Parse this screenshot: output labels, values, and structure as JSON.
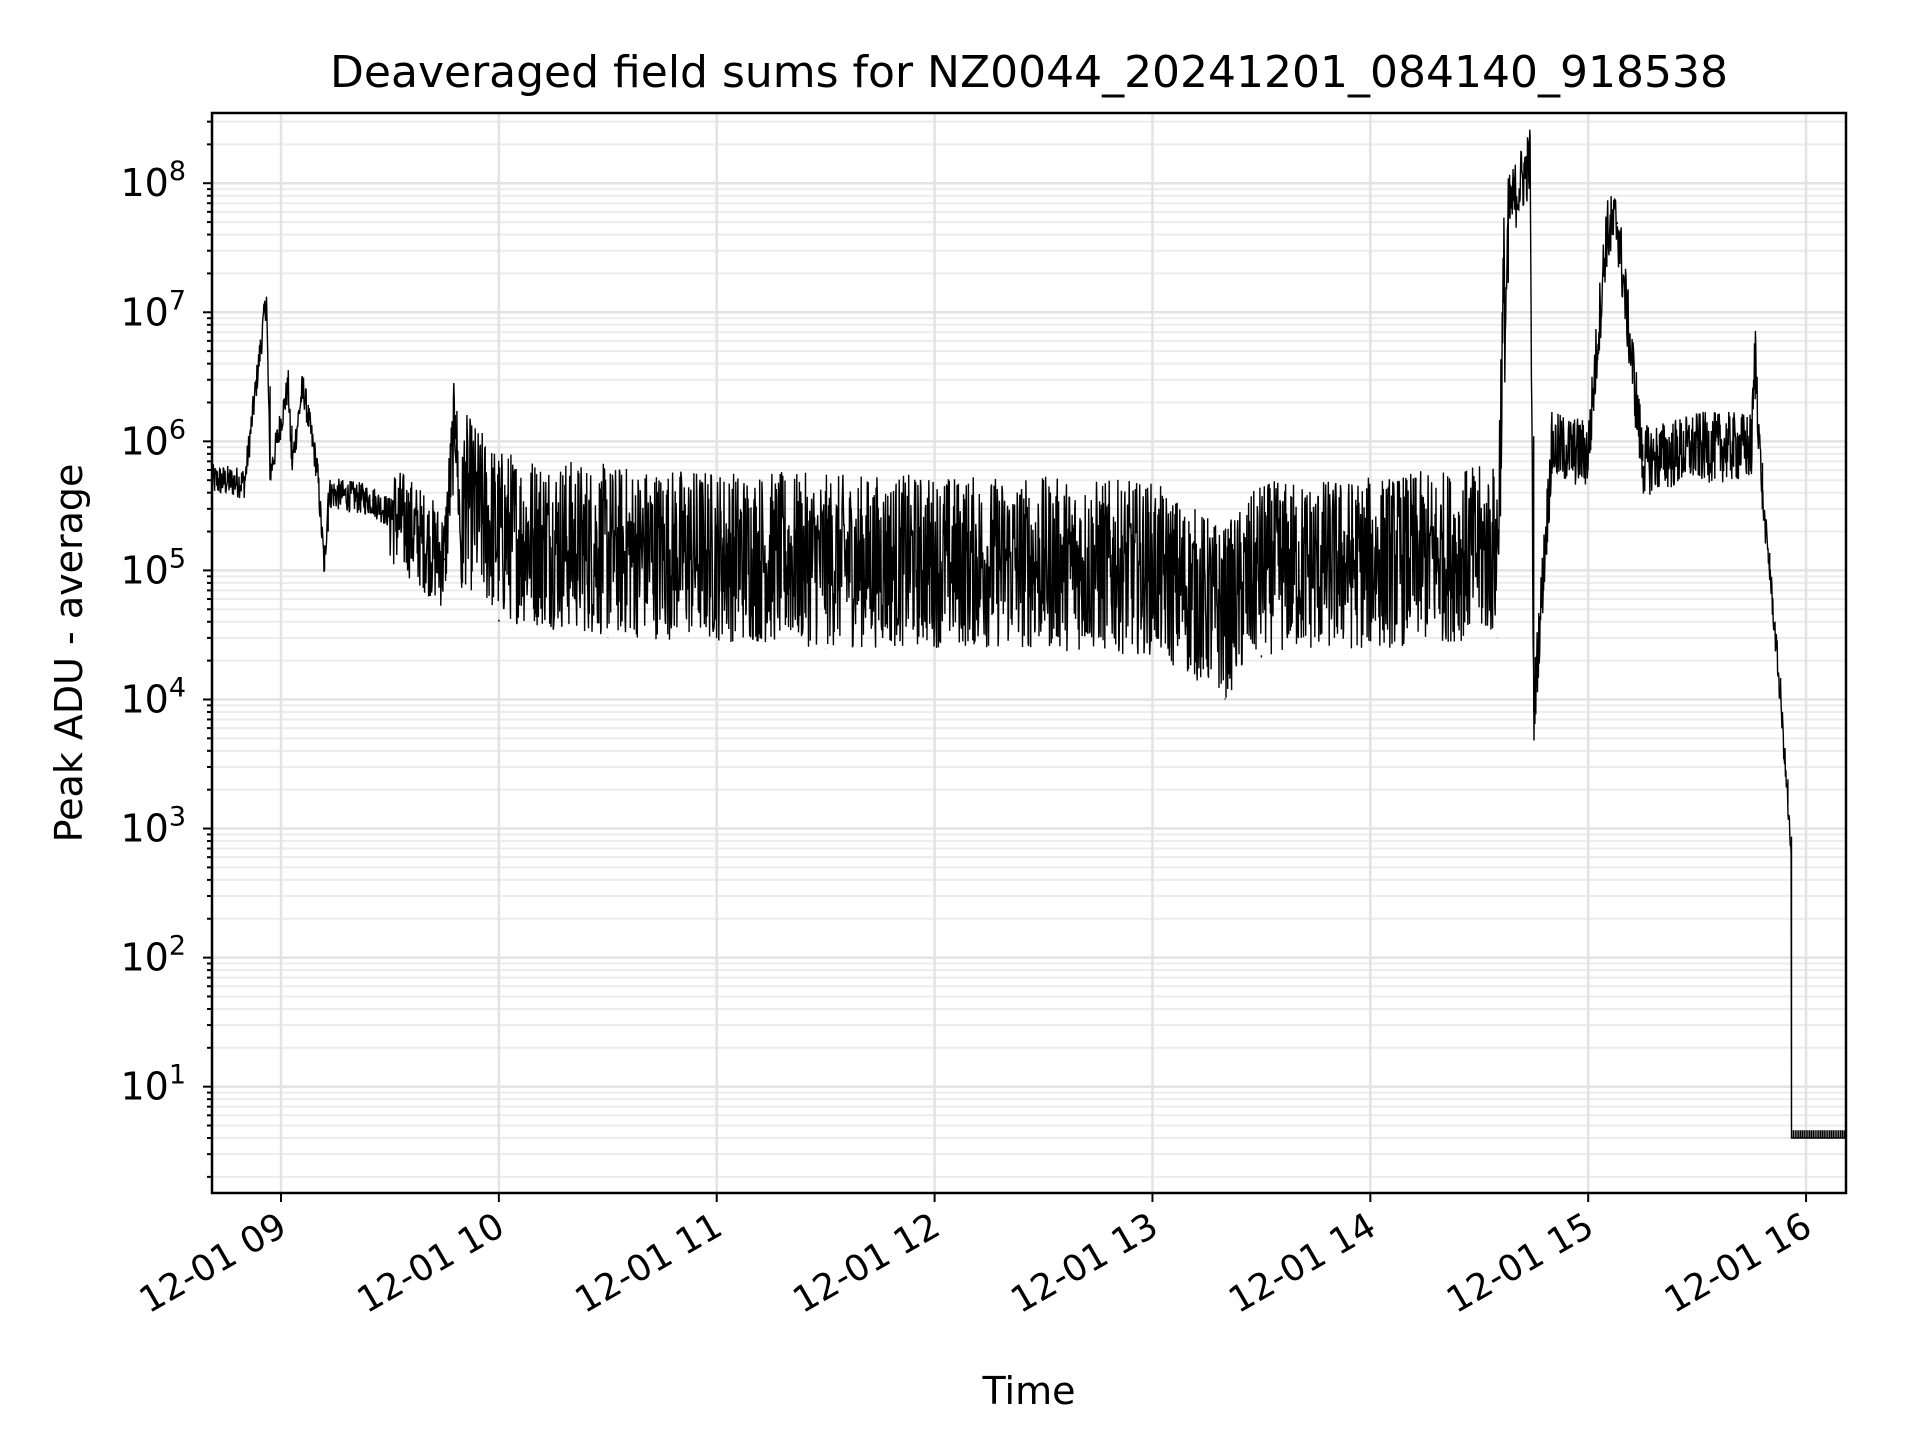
{
  "chart_data": {
    "type": "line",
    "title": "Deaveraged field sums for NZ0044_20241201_084140_918538",
    "xlabel": "Time",
    "ylabel": "Peak ADU - average",
    "yscale": "log",
    "ylim": [
      1.5,
      350000000
    ],
    "y_ticks": [
      {
        "base": "10",
        "exp": "1",
        "value": 10
      },
      {
        "base": "10",
        "exp": "2",
        "value": 100
      },
      {
        "base": "10",
        "exp": "3",
        "value": 1000
      },
      {
        "base": "10",
        "exp": "4",
        "value": 10000
      },
      {
        "base": "10",
        "exp": "5",
        "value": 100000
      },
      {
        "base": "10",
        "exp": "6",
        "value": 1000000
      },
      {
        "base": "10",
        "exp": "7",
        "value": 10000000
      },
      {
        "base": "10",
        "exp": "8",
        "value": 100000000
      }
    ],
    "xlim": [
      "2024-12-01 08:41",
      "2024-12-01 16:11"
    ],
    "x_ticks": [
      {
        "label": "12-01 09",
        "time": "2024-12-01 09:00"
      },
      {
        "label": "12-01 10",
        "time": "2024-12-01 10:00"
      },
      {
        "label": "12-01 11",
        "time": "2024-12-01 11:00"
      },
      {
        "label": "12-01 12",
        "time": "2024-12-01 12:00"
      },
      {
        "label": "12-01 13",
        "time": "2024-12-01 13:00"
      },
      {
        "label": "12-01 14",
        "time": "2024-12-01 14:00"
      },
      {
        "label": "12-01 15",
        "time": "2024-12-01 15:00"
      },
      {
        "label": "12-01 16",
        "time": "2024-12-01 16:00"
      }
    ],
    "grid": true,
    "series": [
      {
        "color": "#000000",
        "points": [
          [
            "2024-12-01 08:41",
            500000
          ],
          [
            "2024-12-01 08:50",
            480000
          ],
          [
            "2024-12-01 08:56",
            13000000
          ],
          [
            "2024-12-01 08:57",
            550000
          ],
          [
            "2024-12-01 09:02",
            2700000
          ],
          [
            "2024-12-01 09:03",
            650000
          ],
          [
            "2024-12-01 09:06",
            2700000
          ],
          [
            "2024-12-01 09:10",
            600000
          ],
          [
            "2024-12-01 09:12",
            100000
          ],
          [
            "2024-12-01 09:13",
            400000
          ],
          [
            "2024-12-01 09:25",
            350000
          ],
          [
            "2024-12-01 09:35",
            220000
          ],
          [
            "2024-12-01 09:45",
            120000
          ],
          [
            "2024-12-01 09:48",
            1600000
          ],
          [
            "2024-12-01 09:50",
            80000
          ],
          [
            "2024-12-01 10:00",
            40000
          ],
          [
            "2024-12-01 10:30",
            30000
          ],
          [
            "2024-12-01 11:00",
            28000
          ],
          [
            "2024-12-01 11:30",
            25000
          ],
          [
            "2024-12-01 12:00",
            25000
          ],
          [
            "2024-12-01 12:30",
            24000
          ],
          [
            "2024-12-01 13:00",
            22000
          ],
          [
            "2024-12-01 13:20",
            10000
          ],
          [
            "2024-12-01 13:30",
            22000
          ],
          [
            "2024-12-01 14:00",
            24000
          ],
          [
            "2024-12-01 14:35",
            30000
          ],
          [
            "2024-12-01 14:38",
            60000000
          ],
          [
            "2024-12-01 14:44",
            150000000
          ],
          [
            "2024-12-01 14:45",
            8000
          ],
          [
            "2024-12-01 14:50",
            900000
          ],
          [
            "2024-12-01 15:00",
            800000
          ],
          [
            "2024-12-01 15:05",
            40000000
          ],
          [
            "2024-12-01 15:08",
            50000000
          ],
          [
            "2024-12-01 15:15",
            700000
          ],
          [
            "2024-12-01 15:30",
            900000
          ],
          [
            "2024-12-01 15:45",
            900000
          ],
          [
            "2024-12-01 15:46",
            5000000
          ],
          [
            "2024-12-01 15:48",
            350000
          ],
          [
            "2024-12-01 15:50",
            100000
          ],
          [
            "2024-12-01 15:53",
            10000
          ],
          [
            "2024-12-01 15:55",
            1500
          ],
          [
            "2024-12-01 15:56",
            500
          ],
          [
            "2024-12-01 15:56",
            4
          ],
          [
            "2024-12-01 16:11",
            4
          ]
        ]
      }
    ]
  }
}
